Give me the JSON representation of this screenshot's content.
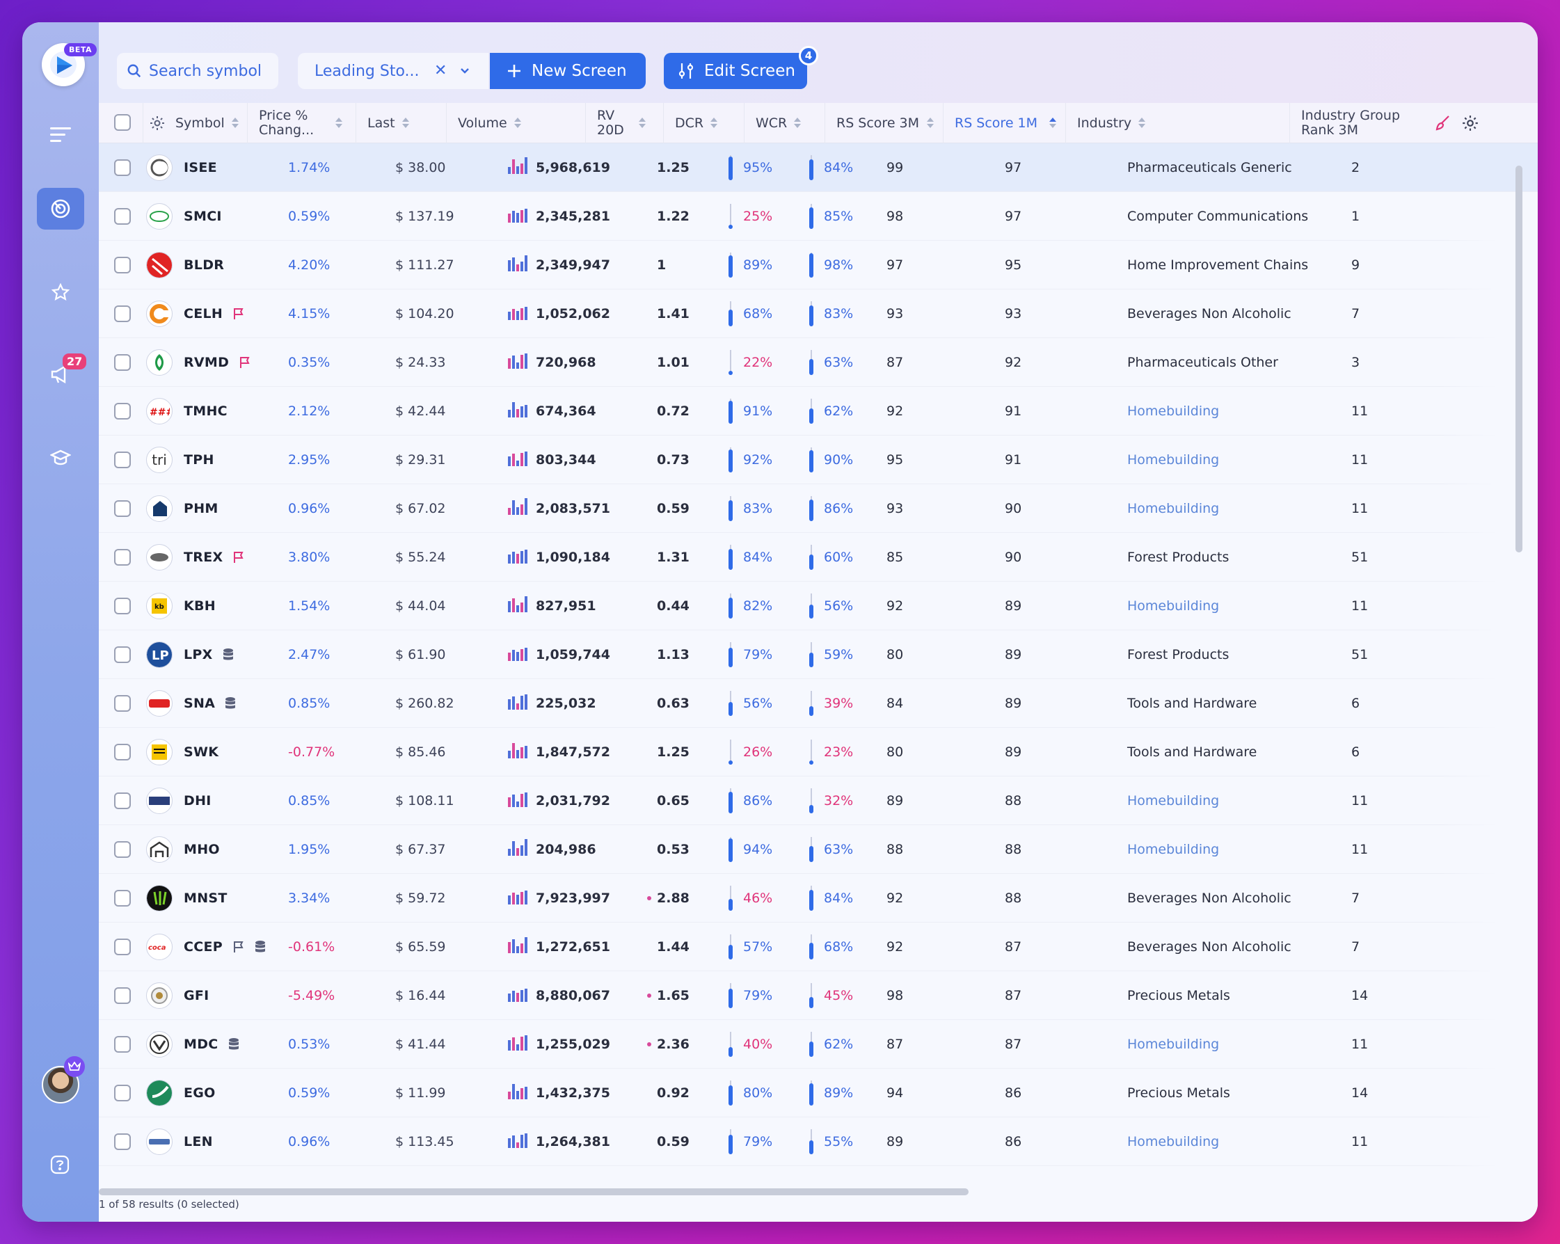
{
  "app": {
    "badge_beta": "BETA",
    "notifications_count": "27",
    "edit_badge": "4"
  },
  "toolbar": {
    "search_placeholder": "Search symbol",
    "screen_name": "Leading Sto...",
    "new_screen": "New Screen",
    "edit_screen": "Edit Screen"
  },
  "columns": {
    "symbol": "Symbol",
    "price_pct": "Price % Chang...",
    "last": "Last",
    "volume": "Volume",
    "rv": "RV 20D",
    "dcr": "DCR",
    "wcr": "WCR",
    "rs3m": "RS Score 3M",
    "rs1m": "RS Score 1M",
    "industry": "Industry",
    "igr": "Industry Group Rank 3M"
  },
  "rows": [
    {
      "symbol": "ISEE",
      "pct": "1.74%",
      "last": "$ 38.00",
      "volume": "5,968,619",
      "rv": "1.25",
      "dcr": "95%",
      "wcr": "84%",
      "rs3m": "99",
      "rs1m": "97",
      "industry": "Pharmaceuticals Generic",
      "igr": "2"
    },
    {
      "symbol": "SMCI",
      "pct": "0.59%",
      "last": "$ 137.19",
      "volume": "2,345,281",
      "rv": "1.22",
      "dcr": "25%",
      "wcr": "85%",
      "rs3m": "98",
      "rs1m": "97",
      "industry": "Computer Communications",
      "igr": "1"
    },
    {
      "symbol": "BLDR",
      "pct": "4.20%",
      "last": "$ 111.27",
      "volume": "2,349,947",
      "rv": "1",
      "dcr": "89%",
      "wcr": "98%",
      "rs3m": "97",
      "rs1m": "95",
      "industry": "Home Improvement Chains",
      "igr": "9"
    },
    {
      "symbol": "CELH",
      "pct": "4.15%",
      "last": "$ 104.20",
      "volume": "1,052,062",
      "rv": "1.41",
      "dcr": "68%",
      "wcr": "83%",
      "rs3m": "93",
      "rs1m": "93",
      "industry": "Beverages Non Alcoholic",
      "igr": "7"
    },
    {
      "symbol": "RVMD",
      "pct": "0.35%",
      "last": "$ 24.33",
      "volume": "720,968",
      "rv": "1.01",
      "dcr": "22%",
      "wcr": "63%",
      "rs3m": "87",
      "rs1m": "92",
      "industry": "Pharmaceuticals Other",
      "igr": "3"
    },
    {
      "symbol": "TMHC",
      "pct": "2.12%",
      "last": "$ 42.44",
      "volume": "674,364",
      "rv": "0.72",
      "dcr": "91%",
      "wcr": "62%",
      "rs3m": "92",
      "rs1m": "91",
      "industry": "Homebuilding",
      "igr": "11"
    },
    {
      "symbol": "TPH",
      "pct": "2.95%",
      "last": "$ 29.31",
      "volume": "803,344",
      "rv": "0.73",
      "dcr": "92%",
      "wcr": "90%",
      "rs3m": "95",
      "rs1m": "91",
      "industry": "Homebuilding",
      "igr": "11"
    },
    {
      "symbol": "PHM",
      "pct": "0.96%",
      "last": "$ 67.02",
      "volume": "2,083,571",
      "rv": "0.59",
      "dcr": "83%",
      "wcr": "86%",
      "rs3m": "93",
      "rs1m": "90",
      "industry": "Homebuilding",
      "igr": "11"
    },
    {
      "symbol": "TREX",
      "pct": "3.80%",
      "last": "$ 55.24",
      "volume": "1,090,184",
      "rv": "1.31",
      "dcr": "84%",
      "wcr": "60%",
      "rs3m": "85",
      "rs1m": "90",
      "industry": "Forest Products",
      "igr": "51"
    },
    {
      "symbol": "KBH",
      "pct": "1.54%",
      "last": "$ 44.04",
      "volume": "827,951",
      "rv": "0.44",
      "dcr": "82%",
      "wcr": "56%",
      "rs3m": "92",
      "rs1m": "89",
      "industry": "Homebuilding",
      "igr": "11"
    },
    {
      "symbol": "LPX",
      "pct": "2.47%",
      "last": "$ 61.90",
      "volume": "1,059,744",
      "rv": "1.13",
      "dcr": "79%",
      "wcr": "59%",
      "rs3m": "80",
      "rs1m": "89",
      "industry": "Forest Products",
      "igr": "51"
    },
    {
      "symbol": "SNA",
      "pct": "0.85%",
      "last": "$ 260.82",
      "volume": "225,032",
      "rv": "0.63",
      "dcr": "56%",
      "wcr": "39%",
      "rs3m": "84",
      "rs1m": "89",
      "industry": "Tools and Hardware",
      "igr": "6"
    },
    {
      "symbol": "SWK",
      "pct": "-0.77%",
      "last": "$ 85.46",
      "volume": "1,847,572",
      "rv": "1.25",
      "dcr": "26%",
      "wcr": "23%",
      "rs3m": "80",
      "rs1m": "89",
      "industry": "Tools and Hardware",
      "igr": "6"
    },
    {
      "symbol": "DHI",
      "pct": "0.85%",
      "last": "$ 108.11",
      "volume": "2,031,792",
      "rv": "0.65",
      "dcr": "86%",
      "wcr": "32%",
      "rs3m": "89",
      "rs1m": "88",
      "industry": "Homebuilding",
      "igr": "11"
    },
    {
      "symbol": "MHO",
      "pct": "1.95%",
      "last": "$ 67.37",
      "volume": "204,986",
      "rv": "0.53",
      "dcr": "94%",
      "wcr": "63%",
      "rs3m": "88",
      "rs1m": "88",
      "industry": "Homebuilding",
      "igr": "11"
    },
    {
      "symbol": "MNST",
      "pct": "3.34%",
      "last": "$ 59.72",
      "volume": "7,923,997",
      "rv": "2.88",
      "dcr": "46%",
      "wcr": "84%",
      "rs3m": "92",
      "rs1m": "88",
      "industry": "Beverages Non Alcoholic",
      "igr": "7"
    },
    {
      "symbol": "CCEP",
      "pct": "-0.61%",
      "last": "$ 65.59",
      "volume": "1,272,651",
      "rv": "1.44",
      "dcr": "57%",
      "wcr": "68%",
      "rs3m": "92",
      "rs1m": "87",
      "industry": "Beverages Non Alcoholic",
      "igr": "7"
    },
    {
      "symbol": "GFI",
      "pct": "-5.49%",
      "last": "$ 16.44",
      "volume": "8,880,067",
      "rv": "1.65",
      "dcr": "79%",
      "wcr": "45%",
      "rs3m": "98",
      "rs1m": "87",
      "industry": "Precious Metals",
      "igr": "14"
    },
    {
      "symbol": "MDC",
      "pct": "0.53%",
      "last": "$ 41.44",
      "volume": "1,255,029",
      "rv": "2.36",
      "dcr": "40%",
      "wcr": "62%",
      "rs3m": "87",
      "rs1m": "87",
      "industry": "Homebuilding",
      "igr": "11"
    },
    {
      "symbol": "EGO",
      "pct": "0.59%",
      "last": "$ 11.99",
      "volume": "1,432,375",
      "rv": "0.92",
      "dcr": "80%",
      "wcr": "89%",
      "rs3m": "94",
      "rs1m": "86",
      "industry": "Precious Metals",
      "igr": "14"
    },
    {
      "symbol": "LEN",
      "pct": "0.96%",
      "last": "$ 113.45",
      "volume": "1,264,381",
      "rv": "0.59",
      "dcr": "79%",
      "wcr": "55%",
      "rs3m": "89",
      "rs1m": "86",
      "industry": "Homebuilding",
      "igr": "11"
    }
  ],
  "footer": {
    "results": "1 of 58 results (0 selected)"
  },
  "colors": {
    "accent": "#2f6be8",
    "positive": "#3d6be0",
    "negative": "#e0347a"
  }
}
